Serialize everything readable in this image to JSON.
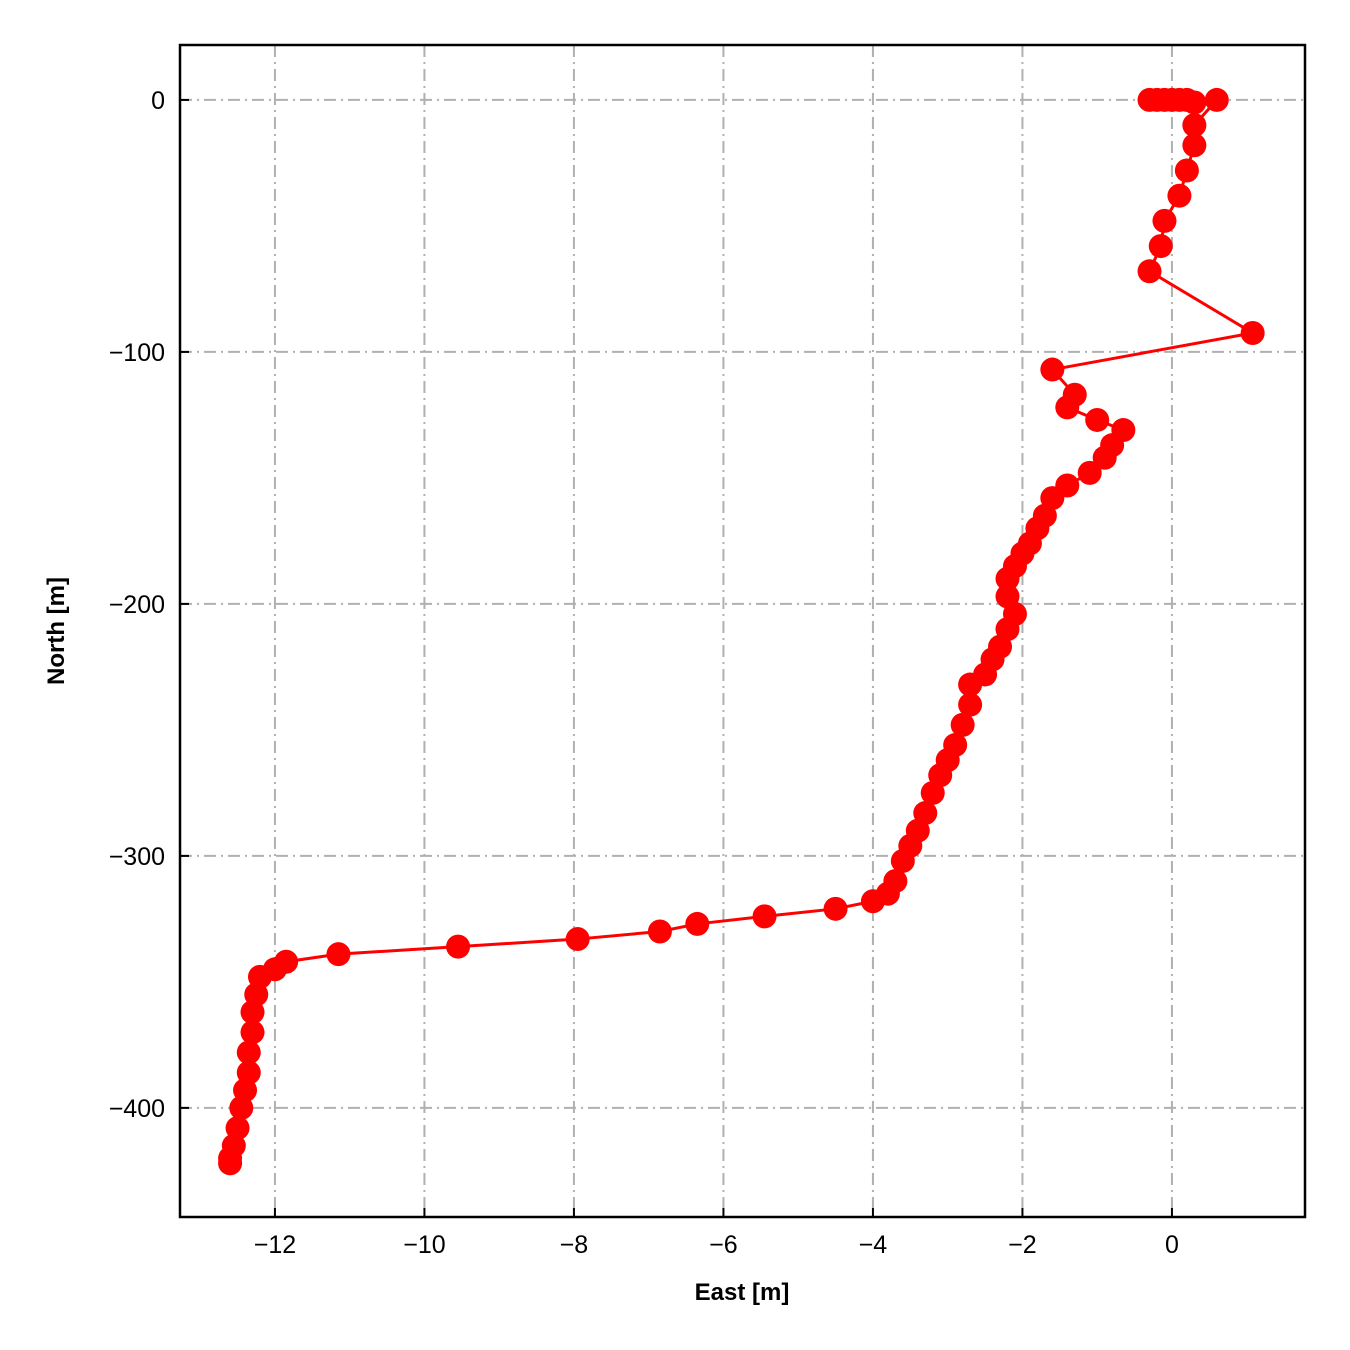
{
  "chart_data": {
    "type": "line",
    "xlabel": "East [m]",
    "ylabel": "North [m]",
    "series": [
      {
        "color": "#ff0000",
        "x": [
          -0.3,
          -0.2,
          -0.1,
          0,
          0.1,
          0.2,
          0.3,
          0.6,
          0.3,
          0.3,
          0.2,
          0.1,
          -0.1,
          -0.15,
          -0.3,
          1.08,
          -1.6,
          -1.3,
          -1.4,
          -1.0,
          -0.65,
          -0.8,
          -0.9,
          -1.1,
          -1.4,
          -1.6,
          -1.7,
          -1.8,
          -1.9,
          -2.0,
          -2.1,
          -2.2,
          -2.2,
          -2.1,
          -2.2,
          -2.3,
          -2.4,
          -2.5,
          -2.7,
          -2.7,
          -2.8,
          -2.9,
          -3.0,
          -3.1,
          -3.2,
          -3.3,
          -3.4,
          -3.5,
          -3.6,
          -3.7,
          -3.8,
          -4.0,
          -4.5,
          -5.45,
          -6.35,
          -6.85,
          -7.95,
          -9.55,
          -11.15,
          -11.85,
          -12.0,
          -12.2,
          -12.25,
          -12.3,
          -12.3,
          -12.35,
          -12.35,
          -12.4,
          -12.45,
          -12.5,
          -12.55,
          -12.6,
          -12.6
        ],
        "values": [
          0,
          0,
          0,
          0,
          0,
          0,
          -1,
          0,
          -10,
          -18,
          -28,
          -38,
          -48,
          -58,
          -68,
          -92.5,
          -107,
          -117,
          -122,
          -127,
          -131,
          -137,
          -142,
          -148,
          -153,
          -158,
          -165,
          -170,
          -176,
          -180,
          -185,
          -190,
          -197,
          -204,
          -210,
          -217,
          -222,
          -228,
          -232,
          -240,
          -248,
          -256,
          -262,
          -268,
          -275,
          -283,
          -290,
          -296,
          -302,
          -310,
          -315,
          -318,
          -321,
          -324,
          -327,
          -330,
          -333,
          -336,
          -339,
          -342,
          -345,
          -348,
          -355,
          -362,
          -370,
          -378,
          -386,
          -393,
          -400,
          -408,
          -415,
          -420,
          -422
        ]
      }
    ],
    "xlim": [
      -13.27,
      1.78
    ],
    "ylim": [
      -443.3,
      21.8
    ],
    "xticks": [
      {
        "value": -12,
        "label": "−12"
      },
      {
        "value": -10,
        "label": "−10"
      },
      {
        "value": -8,
        "label": "−8"
      },
      {
        "value": -6,
        "label": "−6"
      },
      {
        "value": -4,
        "label": "−4"
      },
      {
        "value": -2,
        "label": "−2"
      },
      0
    ],
    "yticks": [
      {
        "value": -400,
        "label": "−400"
      },
      {
        "value": -300,
        "label": "−300"
      },
      {
        "value": -200,
        "label": "−200"
      },
      {
        "value": -100,
        "label": "−100"
      },
      0
    ],
    "grid": true
  }
}
